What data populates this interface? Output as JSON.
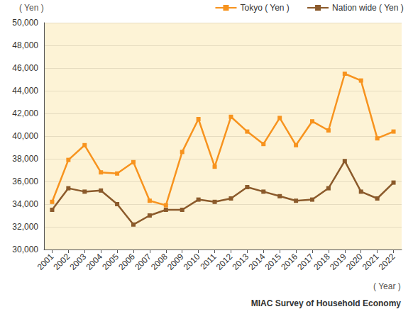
{
  "chart_data": {
    "type": "line",
    "ylabel": "( Yen )",
    "xlabel": "( Year )",
    "source": "MIAC Survey of Household Economy",
    "categories": [
      "2001",
      "2002",
      "2003",
      "2004",
      "2005",
      "2006",
      "2007",
      "2008",
      "2009",
      "2010",
      "2011",
      "2012",
      "2013",
      "2014",
      "2015",
      "2016",
      "2017",
      "2018",
      "2019",
      "2020",
      "2021",
      "2022"
    ],
    "series": [
      {
        "name": "Tokyo ( Yen )",
        "color": "#f7931e",
        "marker": "square",
        "values": [
          34200,
          37900,
          39200,
          36800,
          36700,
          37700,
          34300,
          33900,
          38600,
          41500,
          37300,
          41700,
          40400,
          39300,
          41600,
          39200,
          41300,
          40500,
          45500,
          44900,
          39800,
          40400
        ]
      },
      {
        "name": "Nation wide ( Yen )",
        "color": "#8b5a2b",
        "marker": "square",
        "values": [
          33500,
          35400,
          35100,
          35200,
          34000,
          32200,
          33000,
          33500,
          33500,
          34400,
          34200,
          34500,
          35500,
          35100,
          34700,
          34300,
          34400,
          35400,
          37800,
          35100,
          34500,
          35900
        ]
      }
    ],
    "ylim": [
      30000,
      50000
    ],
    "yticks": [
      {
        "value": 30000,
        "label": "30,000"
      },
      {
        "value": 32000,
        "label": "32,000"
      },
      {
        "value": 34000,
        "label": "34,000"
      },
      {
        "value": 36000,
        "label": "36,000"
      },
      {
        "value": 38000,
        "label": "38,000"
      },
      {
        "value": 40000,
        "label": "40,000"
      },
      {
        "value": 42000,
        "label": "42,000"
      },
      {
        "value": 44000,
        "label": "44,000"
      },
      {
        "value": 46000,
        "label": "46,000"
      },
      {
        "value": 48000,
        "label": "48,000"
      },
      {
        "value": 50000,
        "label": "50,000"
      }
    ],
    "grid": true,
    "legend": "top-right"
  }
}
